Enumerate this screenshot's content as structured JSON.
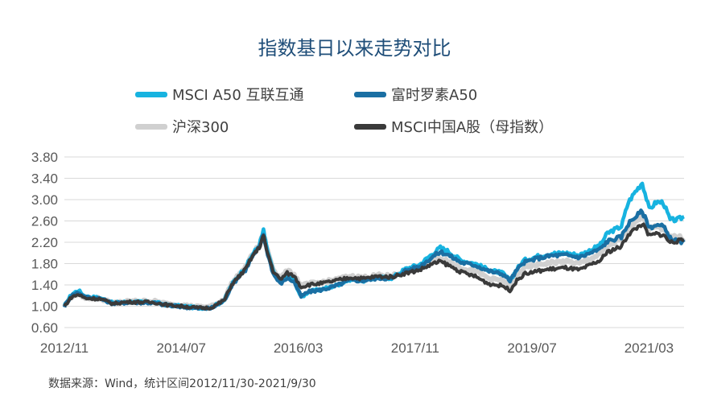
{
  "chart_data": {
    "type": "line",
    "title": "指数基日以来走势对比",
    "ylim": [
      0.6,
      3.8
    ],
    "yticks": [
      "3.80",
      "3.40",
      "3.00",
      "2.60",
      "2.20",
      "1.80",
      "1.40",
      "1.00",
      "0.60"
    ],
    "xticks": [
      "2012/11",
      "2014/07",
      "2016/03",
      "2017/11",
      "2019/07",
      "2021/03"
    ],
    "grid": true,
    "legend_position": "top",
    "x_range": [
      "2012/11",
      "2021/09"
    ],
    "series": [
      {
        "name": "MSCI A50 互联互通",
        "color": "#17b3e0",
        "points": [
          [
            0,
            1.0
          ],
          [
            1,
            1.22
          ],
          [
            2,
            1.3
          ],
          [
            3,
            1.18
          ],
          [
            5,
            1.16
          ],
          [
            7,
            1.06
          ],
          [
            9,
            1.08
          ],
          [
            11,
            1.08
          ],
          [
            13,
            1.07
          ],
          [
            15,
            1.02
          ],
          [
            17,
            1.0
          ],
          [
            19,
            0.97
          ],
          [
            21,
            0.97
          ],
          [
            22,
            1.04
          ],
          [
            23,
            1.12
          ],
          [
            24,
            1.4
          ],
          [
            25,
            1.58
          ],
          [
            26,
            1.72
          ],
          [
            27,
            1.97
          ],
          [
            28,
            2.15
          ],
          [
            28.6,
            2.42
          ],
          [
            29,
            2.14
          ],
          [
            30,
            1.65
          ],
          [
            31,
            1.45
          ],
          [
            32,
            1.57
          ],
          [
            33,
            1.49
          ],
          [
            34,
            1.16
          ],
          [
            35,
            1.27
          ],
          [
            37,
            1.32
          ],
          [
            39,
            1.39
          ],
          [
            41,
            1.5
          ],
          [
            43,
            1.48
          ],
          [
            45,
            1.54
          ],
          [
            47,
            1.53
          ],
          [
            49,
            1.7
          ],
          [
            51,
            1.78
          ],
          [
            53,
            2.0
          ],
          [
            54,
            2.1
          ],
          [
            55,
            2.04
          ],
          [
            57,
            1.86
          ],
          [
            59,
            1.8
          ],
          [
            61,
            1.68
          ],
          [
            63,
            1.62
          ],
          [
            64,
            1.48
          ],
          [
            65,
            1.7
          ],
          [
            66,
            1.86
          ],
          [
            68,
            1.94
          ],
          [
            70,
            1.99
          ],
          [
            72,
            2.0
          ],
          [
            74,
            1.96
          ],
          [
            76,
            2.08
          ],
          [
            77,
            2.16
          ],
          [
            78,
            2.37
          ],
          [
            80,
            2.5
          ],
          [
            81,
            2.95
          ],
          [
            82,
            3.15
          ],
          [
            83,
            3.32
          ],
          [
            84,
            2.82
          ],
          [
            85,
            2.95
          ],
          [
            86,
            2.95
          ],
          [
            87,
            2.62
          ],
          [
            88,
            2.62
          ],
          [
            89,
            2.68
          ]
        ]
      },
      {
        "name": "富时罗素A50",
        "color": "#1a6fa3",
        "points": [
          [
            0,
            1.0
          ],
          [
            1,
            1.2
          ],
          [
            2,
            1.26
          ],
          [
            3,
            1.17
          ],
          [
            5,
            1.15
          ],
          [
            7,
            1.05
          ],
          [
            9,
            1.07
          ],
          [
            11,
            1.07
          ],
          [
            13,
            1.06
          ],
          [
            15,
            1.01
          ],
          [
            17,
            0.99
          ],
          [
            19,
            0.96
          ],
          [
            21,
            0.96
          ],
          [
            22,
            1.03
          ],
          [
            23,
            1.11
          ],
          [
            24,
            1.38
          ],
          [
            25,
            1.55
          ],
          [
            26,
            1.68
          ],
          [
            27,
            1.93
          ],
          [
            28,
            2.1
          ],
          [
            28.6,
            2.35
          ],
          [
            29,
            2.08
          ],
          [
            30,
            1.61
          ],
          [
            31,
            1.42
          ],
          [
            32,
            1.53
          ],
          [
            33,
            1.46
          ],
          [
            34,
            1.18
          ],
          [
            35,
            1.27
          ],
          [
            37,
            1.31
          ],
          [
            39,
            1.38
          ],
          [
            41,
            1.49
          ],
          [
            43,
            1.48
          ],
          [
            45,
            1.53
          ],
          [
            47,
            1.52
          ],
          [
            49,
            1.67
          ],
          [
            51,
            1.74
          ],
          [
            53,
            1.94
          ],
          [
            54,
            2.02
          ],
          [
            55,
            1.97
          ],
          [
            57,
            1.82
          ],
          [
            59,
            1.77
          ],
          [
            61,
            1.66
          ],
          [
            63,
            1.6
          ],
          [
            64,
            1.48
          ],
          [
            65,
            1.68
          ],
          [
            66,
            1.82
          ],
          [
            68,
            1.9
          ],
          [
            70,
            1.95
          ],
          [
            72,
            1.96
          ],
          [
            74,
            1.92
          ],
          [
            76,
            2.02
          ],
          [
            77,
            2.08
          ],
          [
            78,
            2.22
          ],
          [
            80,
            2.3
          ],
          [
            81,
            2.55
          ],
          [
            82,
            2.68
          ],
          [
            83,
            2.78
          ],
          [
            84,
            2.48
          ],
          [
            85,
            2.52
          ],
          [
            86,
            2.5
          ],
          [
            87,
            2.28
          ],
          [
            88,
            2.22
          ],
          [
            89,
            2.2
          ]
        ]
      },
      {
        "name": "沪深300",
        "color": "#d0d0d0",
        "points": [
          [
            0,
            1.0
          ],
          [
            1,
            1.18
          ],
          [
            2,
            1.24
          ],
          [
            3,
            1.16
          ],
          [
            5,
            1.15
          ],
          [
            7,
            1.06
          ],
          [
            9,
            1.09
          ],
          [
            11,
            1.1
          ],
          [
            13,
            1.09
          ],
          [
            15,
            1.04
          ],
          [
            17,
            1.02
          ],
          [
            19,
            0.99
          ],
          [
            21,
            0.99
          ],
          [
            22,
            1.06
          ],
          [
            23,
            1.14
          ],
          [
            24,
            1.42
          ],
          [
            25,
            1.58
          ],
          [
            26,
            1.72
          ],
          [
            27,
            1.97
          ],
          [
            28,
            2.14
          ],
          [
            28.6,
            2.38
          ],
          [
            29,
            2.12
          ],
          [
            30,
            1.7
          ],
          [
            31,
            1.53
          ],
          [
            32,
            1.66
          ],
          [
            33,
            1.6
          ],
          [
            34,
            1.38
          ],
          [
            35,
            1.42
          ],
          [
            37,
            1.45
          ],
          [
            39,
            1.5
          ],
          [
            41,
            1.56
          ],
          [
            43,
            1.54
          ],
          [
            45,
            1.58
          ],
          [
            47,
            1.57
          ],
          [
            49,
            1.66
          ],
          [
            51,
            1.72
          ],
          [
            53,
            1.86
          ],
          [
            54,
            1.91
          ],
          [
            55,
            1.86
          ],
          [
            57,
            1.72
          ],
          [
            59,
            1.66
          ],
          [
            61,
            1.52
          ],
          [
            63,
            1.48
          ],
          [
            64,
            1.38
          ],
          [
            65,
            1.58
          ],
          [
            66,
            1.72
          ],
          [
            68,
            1.78
          ],
          [
            70,
            1.82
          ],
          [
            72,
            1.84
          ],
          [
            74,
            1.8
          ],
          [
            76,
            1.92
          ],
          [
            77,
            1.98
          ],
          [
            78,
            2.14
          ],
          [
            80,
            2.25
          ],
          [
            81,
            2.48
          ],
          [
            82,
            2.6
          ],
          [
            83,
            2.7
          ],
          [
            84,
            2.45
          ],
          [
            85,
            2.48
          ],
          [
            86,
            2.46
          ],
          [
            87,
            2.32
          ],
          [
            88,
            2.3
          ],
          [
            89,
            2.28
          ]
        ]
      },
      {
        "name": "MSCI中国A股（母指数）",
        "color": "#3a3a3a",
        "points": [
          [
            0,
            1.0
          ],
          [
            1,
            1.17
          ],
          [
            2,
            1.22
          ],
          [
            3,
            1.15
          ],
          [
            5,
            1.14
          ],
          [
            7,
            1.05
          ],
          [
            9,
            1.08
          ],
          [
            11,
            1.08
          ],
          [
            13,
            1.07
          ],
          [
            15,
            1.02
          ],
          [
            17,
            1.0
          ],
          [
            19,
            0.97
          ],
          [
            21,
            0.97
          ],
          [
            22,
            1.04
          ],
          [
            23,
            1.12
          ],
          [
            24,
            1.4
          ],
          [
            25,
            1.55
          ],
          [
            26,
            1.69
          ],
          [
            27,
            1.94
          ],
          [
            28,
            2.1
          ],
          [
            28.6,
            2.33
          ],
          [
            29,
            2.08
          ],
          [
            30,
            1.66
          ],
          [
            31,
            1.5
          ],
          [
            32,
            1.62
          ],
          [
            33,
            1.57
          ],
          [
            34,
            1.36
          ],
          [
            35,
            1.4
          ],
          [
            37,
            1.43
          ],
          [
            39,
            1.48
          ],
          [
            41,
            1.54
          ],
          [
            43,
            1.52
          ],
          [
            45,
            1.56
          ],
          [
            47,
            1.55
          ],
          [
            49,
            1.62
          ],
          [
            51,
            1.68
          ],
          [
            53,
            1.8
          ],
          [
            54,
            1.84
          ],
          [
            55,
            1.78
          ],
          [
            57,
            1.64
          ],
          [
            59,
            1.56
          ],
          [
            61,
            1.42
          ],
          [
            63,
            1.38
          ],
          [
            64,
            1.3
          ],
          [
            65,
            1.48
          ],
          [
            66,
            1.6
          ],
          [
            68,
            1.66
          ],
          [
            70,
            1.7
          ],
          [
            72,
            1.72
          ],
          [
            74,
            1.68
          ],
          [
            76,
            1.8
          ],
          [
            77,
            1.86
          ],
          [
            78,
            2.02
          ],
          [
            80,
            2.12
          ],
          [
            81,
            2.35
          ],
          [
            82,
            2.45
          ],
          [
            83,
            2.55
          ],
          [
            84,
            2.32
          ],
          [
            85,
            2.36
          ],
          [
            86,
            2.34
          ],
          [
            87,
            2.2
          ],
          [
            88,
            2.22
          ],
          [
            89,
            2.24
          ]
        ]
      }
    ]
  },
  "source_text": "数据来源：Wind，统计区间2012/11/30-2021/9/30"
}
